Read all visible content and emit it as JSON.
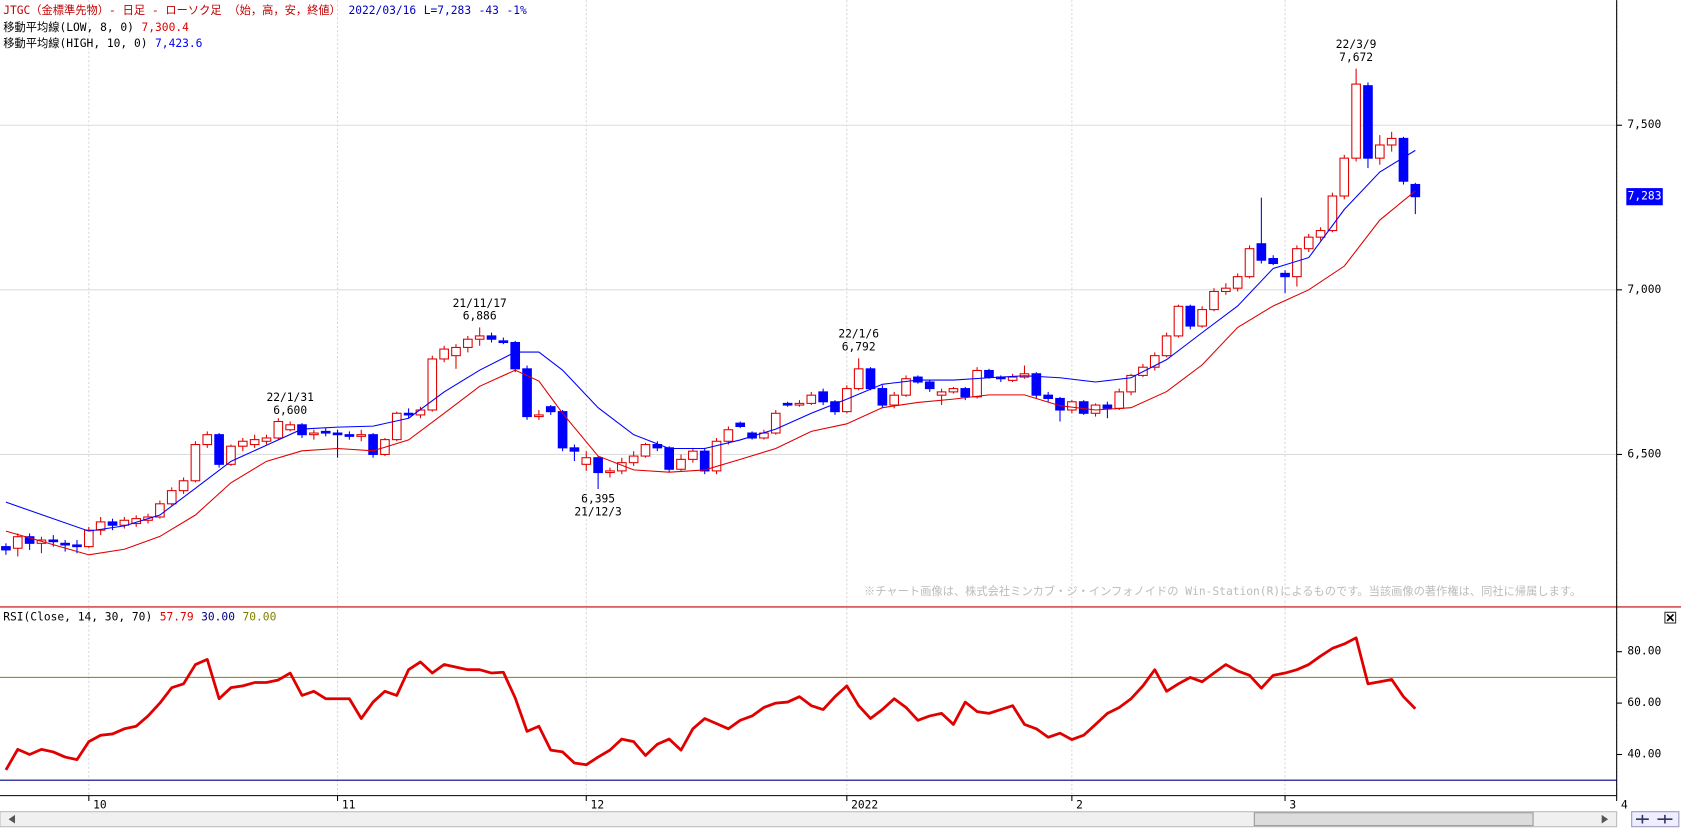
{
  "header": {
    "title": "JTGC（金標準先物）- 日足 - ローソク足 （始，高，安，終値）",
    "date": "2022/03/16",
    "last": "L=7,283",
    "change": "-43",
    "change_pct": "-1%"
  },
  "copyright": "※チャート画像は、株式会社ミンカブ・ジ・インフォノイドの Win-Station(R)によるものです。当該画像の著作権は、同社に帰属します。",
  "chart_data": [
    {
      "type": "candlestick",
      "up_color": "#e00000",
      "down_color": "#0000ff",
      "grid": true,
      "xlim": [
        -0.5,
        136
      ],
      "xticks": [
        {
          "value": 7,
          "label": "10"
        },
        {
          "value": 28,
          "label": "11"
        },
        {
          "value": 49,
          "label": "12"
        },
        {
          "value": 71,
          "label": "2022"
        },
        {
          "value": 90,
          "label": "2"
        },
        {
          "value": 108,
          "label": "3"
        },
        {
          "value": 136,
          "label": "4"
        }
      ],
      "ylim": [
        6040,
        7880
      ],
      "yticks": [
        {
          "value": 6500,
          "label": "6,500"
        },
        {
          "value": 7000,
          "label": "7,000"
        },
        {
          "value": 7500,
          "label": "7,500"
        }
      ],
      "open": [
        6220,
        6215,
        6250,
        6230,
        6240,
        6230,
        6225,
        6220,
        6270,
        6295,
        6285,
        6290,
        6300,
        6310,
        6350,
        6390,
        6420,
        6530,
        6560,
        6470,
        6525,
        6530,
        6540,
        6550,
        6575,
        6590,
        6560,
        6570,
        6565,
        6560,
        6555,
        6560,
        6500,
        6545,
        6625,
        6620,
        6635,
        6790,
        6800,
        6825,
        6850,
        6860,
        6845,
        6840,
        6760,
        6615,
        6645,
        6630,
        6520,
        6470,
        6490,
        6445,
        6450,
        6475,
        6495,
        6530,
        6520,
        6455,
        6485,
        6510,
        6450,
        6540,
        6595,
        6565,
        6550,
        6565,
        6655,
        6650,
        6655,
        6690,
        6660,
        6630,
        6700,
        6760,
        6700,
        6650,
        6680,
        6735,
        6720,
        6680,
        6690,
        6700,
        6675,
        6755,
        6735,
        6725,
        6735,
        6745,
        6680,
        6670,
        6635,
        6660,
        6625,
        6650,
        6640,
        6690,
        6740,
        6765,
        6800,
        6860,
        6950,
        6890,
        6940,
        6995,
        7005,
        7040,
        7140,
        7095,
        7050,
        7040,
        7125,
        7160,
        7180,
        7285,
        7400,
        7620,
        7400,
        7440,
        7460,
        7320
      ],
      "high": [
        6230,
        6260,
        6260,
        6250,
        6255,
        6240,
        6240,
        6280,
        6310,
        6305,
        6310,
        6315,
        6320,
        6360,
        6400,
        6430,
        6540,
        6570,
        6565,
        6530,
        6550,
        6560,
        6560,
        6610,
        6600,
        6595,
        6575,
        6580,
        6575,
        6570,
        6575,
        6565,
        6550,
        6630,
        6640,
        6645,
        6800,
        6830,
        6835,
        6860,
        6886,
        6870,
        6855,
        6845,
        6770,
        6635,
        6650,
        6635,
        6530,
        6510,
        6495,
        6460,
        6490,
        6510,
        6535,
        6540,
        6525,
        6500,
        6520,
        6520,
        6550,
        6585,
        6600,
        6570,
        6575,
        6635,
        6660,
        6665,
        6690,
        6700,
        6665,
        6710,
        6792,
        6765,
        6710,
        6690,
        6740,
        6740,
        6725,
        6700,
        6705,
        6705,
        6765,
        6760,
        6740,
        6745,
        6770,
        6750,
        6690,
        6675,
        6665,
        6665,
        6655,
        6660,
        6700,
        6745,
        6775,
        6810,
        6870,
        6955,
        6955,
        6950,
        7005,
        7020,
        7050,
        7135,
        7280,
        7105,
        7060,
        7135,
        7170,
        7190,
        7295,
        7410,
        7672,
        7630,
        7470,
        7480,
        7465,
        7325
      ],
      "low": [
        6195,
        6190,
        6210,
        6200,
        6220,
        6205,
        6200,
        6215,
        6255,
        6270,
        6275,
        6280,
        6290,
        6305,
        6345,
        6380,
        6415,
        6520,
        6460,
        6465,
        6510,
        6520,
        6530,
        6545,
        6570,
        6550,
        6545,
        6555,
        6490,
        6545,
        6540,
        6490,
        6495,
        6540,
        6610,
        6610,
        6630,
        6780,
        6760,
        6810,
        6830,
        6840,
        6835,
        6750,
        6605,
        6605,
        6620,
        6510,
        6480,
        6450,
        6395,
        6430,
        6440,
        6465,
        6490,
        6510,
        6445,
        6450,
        6475,
        6440,
        6440,
        6530,
        6580,
        6545,
        6545,
        6560,
        6645,
        6645,
        6650,
        6650,
        6620,
        6625,
        6695,
        6695,
        6640,
        6640,
        6675,
        6715,
        6690,
        6650,
        6685,
        6665,
        6670,
        6730,
        6720,
        6720,
        6730,
        6670,
        6660,
        6600,
        6625,
        6620,
        6615,
        6610,
        6635,
        6680,
        6735,
        6755,
        6795,
        6855,
        6880,
        6885,
        6935,
        6985,
        6995,
        7035,
        7080,
        7075,
        6990,
        7010,
        7115,
        7150,
        7175,
        7275,
        7390,
        7370,
        7380,
        7420,
        7320,
        7230
      ],
      "close": [
        6210,
        6250,
        6230,
        6240,
        6235,
        6225,
        6220,
        6270,
        6295,
        6285,
        6300,
        6305,
        6310,
        6350,
        6390,
        6420,
        6530,
        6560,
        6470,
        6525,
        6540,
        6545,
        6550,
        6600,
        6590,
        6560,
        6565,
        6565,
        6560,
        6555,
        6560,
        6500,
        6545,
        6625,
        6620,
        6635,
        6790,
        6820,
        6825,
        6850,
        6860,
        6850,
        6840,
        6760,
        6615,
        6620,
        6630,
        6520,
        6510,
        6490,
        6445,
        6450,
        6475,
        6495,
        6530,
        6520,
        6455,
        6485,
        6510,
        6450,
        6540,
        6575,
        6585,
        6550,
        6565,
        6625,
        6650,
        6655,
        6680,
        6660,
        6630,
        6700,
        6760,
        6700,
        6650,
        6680,
        6730,
        6720,
        6700,
        6690,
        6700,
        6675,
        6755,
        6735,
        6730,
        6735,
        6745,
        6680,
        6670,
        6635,
        6660,
        6625,
        6650,
        6640,
        6690,
        6740,
        6765,
        6800,
        6860,
        6950,
        6890,
        6940,
        6995,
        7005,
        7040,
        7125,
        7090,
        7080,
        7040,
        7125,
        7160,
        7180,
        7285,
        7400,
        7625,
        7400,
        7440,
        7460,
        7330,
        7283
      ],
      "lines": [
        {
          "name": "移動平均線(LOW, 8, 0)",
          "color": "#e00000",
          "last_value_label": "7,300.4",
          "x": [
            0,
            7,
            10,
            13,
            16,
            19,
            22,
            25,
            28,
            31,
            34,
            37,
            40,
            43,
            45,
            47,
            50,
            53,
            56,
            59,
            62,
            65,
            68,
            71,
            74,
            77,
            80,
            83,
            86,
            89,
            92,
            95,
            98,
            101,
            104,
            107,
            110,
            113,
            116,
            119
          ],
          "values": [
            6267,
            6195,
            6212,
            6251,
            6316,
            6414,
            6479,
            6511,
            6518,
            6511,
            6544,
            6625,
            6707,
            6756,
            6723,
            6625,
            6495,
            6453,
            6446,
            6453,
            6485,
            6518,
            6570,
            6593,
            6642,
            6658,
            6668,
            6681,
            6681,
            6648,
            6635,
            6642,
            6691,
            6772,
            6886,
            6951,
            7000,
            7072,
            7212,
            7300.4
          ]
        },
        {
          "name": "移動平均線(HIGH, 10, 0)",
          "color": "#0000ff",
          "last_value_label": "7,423.6",
          "x": [
            0,
            7,
            10,
            13,
            16,
            19,
            22,
            25,
            28,
            31,
            34,
            37,
            40,
            43,
            45,
            47,
            50,
            53,
            56,
            59,
            62,
            65,
            68,
            71,
            74,
            77,
            80,
            83,
            86,
            89,
            92,
            95,
            98,
            101,
            104,
            107,
            110,
            113,
            116,
            119
          ],
          "values": [
            6355,
            6267,
            6283,
            6316,
            6397,
            6479,
            6528,
            6577,
            6583,
            6586,
            6610,
            6690,
            6756,
            6811,
            6811,
            6756,
            6642,
            6560,
            6518,
            6518,
            6544,
            6577,
            6625,
            6668,
            6713,
            6726,
            6726,
            6733,
            6739,
            6733,
            6720,
            6733,
            6788,
            6870,
            6951,
            7065,
            7098,
            7244,
            7358,
            7423.6
          ]
        }
      ],
      "annotations": [
        {
          "date": "21/11/17",
          "value": 6886,
          "label": "6,886"
        },
        {
          "date": "21/12/3",
          "value": 6395,
          "label": "6,395"
        },
        {
          "date": "22/1/6",
          "value": 6792,
          "label": "6,792"
        },
        {
          "date": "22/1/31",
          "value": 6600,
          "label": "6,600"
        },
        {
          "date": "22/3/9",
          "value": 7672,
          "label": "7,672"
        }
      ],
      "price_tag": "7,283"
    },
    {
      "type": "line",
      "ylim": [
        24,
        97
      ],
      "yticks": [
        {
          "value": 40,
          "label": "40.00"
        },
        {
          "value": 60,
          "label": "60.00"
        },
        {
          "value": 80,
          "label": "80.00"
        }
      ],
      "series": [
        {
          "name": "RSI(Close, 14, 30, 70)",
          "color": "#e00000",
          "last_value_label": "57.79",
          "values": [
            34,
            42,
            40,
            42,
            41,
            39,
            38,
            45,
            47.5,
            48,
            50,
            51,
            55,
            60,
            66,
            67.5,
            75,
            77,
            61.7,
            66,
            66.7,
            68,
            68,
            69,
            71.7,
            63,
            64.6,
            61.7,
            61.7,
            61.7,
            54,
            60.4,
            64.6,
            63,
            73,
            76,
            71.7,
            75,
            74,
            73,
            73,
            71.7,
            72,
            62,
            49,
            51,
            41.7,
            41,
            36.7,
            36,
            39,
            41.7,
            46,
            45,
            39.6,
            44,
            46,
            41.7,
            50,
            54,
            52,
            50,
            53.3,
            55,
            58.3,
            60,
            60.4,
            62.5,
            59,
            57.5,
            62.5,
            66.7,
            59,
            54,
            57.5,
            61.7,
            58.3,
            53.3,
            55,
            56,
            51.7,
            60.4,
            56.7,
            56,
            57.5,
            59,
            51.7,
            50,
            46.7,
            48.3,
            45.8,
            47.5,
            51.7,
            56,
            58.3,
            61.7,
            66.7,
            73,
            64.6,
            67.5,
            70,
            68.3,
            71.7,
            75,
            72.5,
            70.8,
            65.8,
            70.8,
            71.7,
            73,
            75,
            78.3,
            81.3,
            83,
            85.4,
            67.5,
            68.3,
            69.2,
            62.5,
            57.79
          ]
        }
      ],
      "levels": [
        {
          "value": 30,
          "label": "30.00",
          "color": "#000080"
        },
        {
          "value": 70,
          "label": "70.00",
          "color": "#808000"
        }
      ]
    }
  ]
}
